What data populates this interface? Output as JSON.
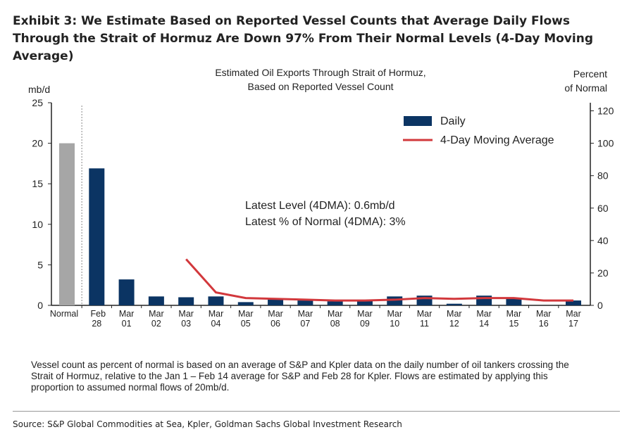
{
  "title": "Exhibit 3: We Estimate Based on Reported Vessel Counts that Average Daily Flows Through the Strait of Hormuz Are Down 97% From Their Normal Levels (4-Day Moving Average)",
  "note": "Vessel count as percent of normal is based on an average of S&P and Kpler data on the daily number of oil tankers crossing the Strait of Hormuz, relative to the Jan 1 – Feb 14 average for S&P and Feb 28 for Kpler. Flows are estimated by applying this proportion to assumed normal flows of 20mb/d.",
  "source": "Source: S&P Global Commodities at Sea, Kpler, Goldman Sachs Global Investment Research",
  "chart_data": {
    "type": "bar",
    "title_lines": [
      "Estimated Oil Exports Through Strait of Hormuz,",
      "Based on Reported Vessel Count"
    ],
    "ylabel_left": "mb/d",
    "ylabel_right_lines": [
      "Percent",
      "of Normal"
    ],
    "ylim_left": [
      0,
      25
    ],
    "yticks_left": [
      0,
      5,
      10,
      15,
      20,
      25
    ],
    "ylim_right": [
      0,
      125
    ],
    "yticks_right": [
      0,
      20,
      40,
      60,
      80,
      100,
      120
    ],
    "categories": [
      [
        "Normal",
        ""
      ],
      [
        "Feb",
        "28"
      ],
      [
        "Mar",
        "01"
      ],
      [
        "Mar",
        "02"
      ],
      [
        "Mar",
        "03"
      ],
      [
        "Mar",
        "04"
      ],
      [
        "Mar",
        "05"
      ],
      [
        "Mar",
        "06"
      ],
      [
        "Mar",
        "07"
      ],
      [
        "Mar",
        "08"
      ],
      [
        "Mar",
        "09"
      ],
      [
        "Mar",
        "10"
      ],
      [
        "Mar",
        "11"
      ],
      [
        "Mar",
        "12"
      ],
      [
        "Mar",
        "14"
      ],
      [
        "Mar",
        "15"
      ],
      [
        "Mar",
        "16"
      ],
      [
        "Mar",
        "17"
      ]
    ],
    "series": [
      {
        "name": "Daily",
        "type": "bar",
        "values": [
          20,
          16.9,
          3.2,
          1.1,
          1.0,
          1.1,
          0.4,
          0.7,
          0.6,
          0.5,
          0.6,
          1.1,
          1.2,
          0.2,
          1.2,
          0.9,
          0,
          0.6
        ]
      },
      {
        "name": "4-Day Moving Average",
        "type": "line",
        "values": [
          null,
          null,
          null,
          null,
          5.7,
          1.6,
          0.9,
          0.8,
          0.7,
          0.6,
          0.6,
          0.7,
          0.9,
          0.8,
          0.9,
          0.9,
          0.6,
          0.6
        ]
      }
    ],
    "colors": {
      "normal": "#a6a6a6",
      "daily": "#0b3463",
      "ma": "#d2383c"
    },
    "legend_placement": "top-right",
    "annotations": [
      "Latest Level (4DMA): 0.6mb/d",
      "Latest % of Normal (4DMA): 3%"
    ],
    "grid": false
  }
}
